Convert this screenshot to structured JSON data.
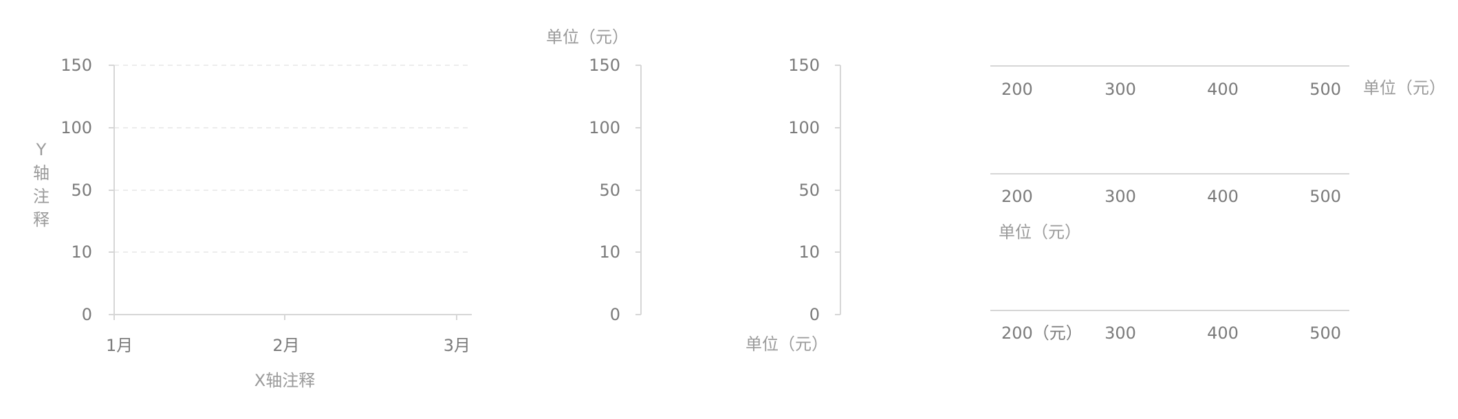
{
  "colors": {
    "tick_text": "#7a7a7a",
    "annotation_text": "#9a9a9a",
    "axis": "#d6d6d6",
    "grid": "#e6e6e6"
  },
  "chart_data": [
    {
      "type": "line",
      "title": "",
      "categories": [
        "1月",
        "2月",
        "3月"
      ],
      "y_ticks": [
        "150",
        "100",
        "50",
        "10",
        "0"
      ],
      "xlabel": "X轴注释",
      "ylabel_chars": [
        "Y",
        "轴",
        "注",
        "释"
      ],
      "grid": true,
      "series": []
    },
    {
      "type": "line",
      "title": "",
      "y_ticks": [
        "150",
        "100",
        "50",
        "10",
        "0"
      ],
      "unit_label": "单位（元）",
      "unit_position": "top",
      "grid": false,
      "series": []
    },
    {
      "type": "line",
      "title": "",
      "y_ticks": [
        "150",
        "100",
        "50",
        "10",
        "0"
      ],
      "unit_label": "单位（元）",
      "unit_position": "bottom",
      "grid": false,
      "series": []
    },
    {
      "type": "bar",
      "orientation": "horizontal",
      "title": "",
      "x_ticks": [
        "200",
        "300",
        "400",
        "500"
      ],
      "unit_label": "单位（元）",
      "unit_position": "right",
      "series": []
    },
    {
      "type": "bar",
      "orientation": "horizontal",
      "title": "",
      "x_ticks": [
        "200",
        "300",
        "400",
        "500"
      ],
      "unit_label": "单位（元）",
      "unit_position": "bottom-left",
      "series": []
    },
    {
      "type": "bar",
      "orientation": "horizontal",
      "title": "",
      "x_ticks": [
        "200（元）",
        "300",
        "400",
        "500"
      ],
      "series": []
    }
  ]
}
